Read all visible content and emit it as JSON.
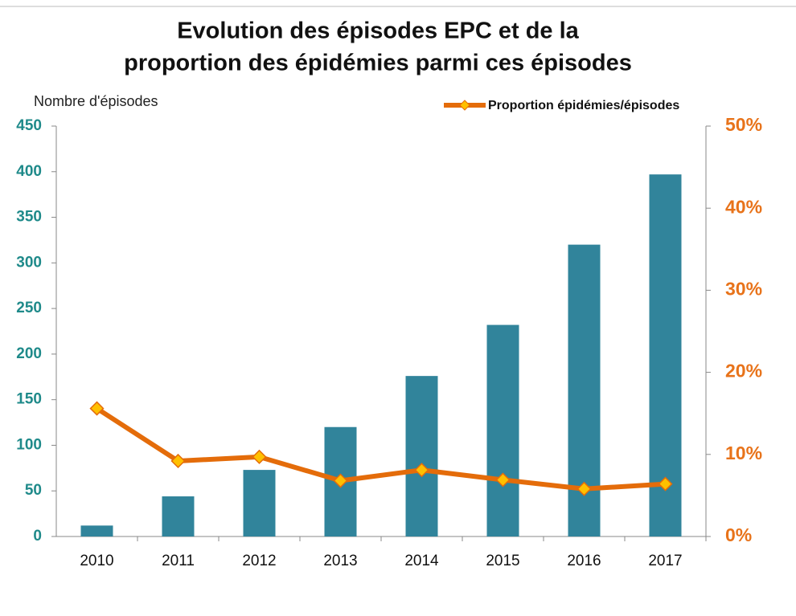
{
  "chart_data": {
    "type": "bar",
    "title": [
      "Evolution des épisodes EPC et de la",
      "proportion des épidémies parmi ces épisodes"
    ],
    "y_label": "Nombre d'épisodes",
    "categories": [
      "2010",
      "2011",
      "2012",
      "2013",
      "2014",
      "2015",
      "2016",
      "2017"
    ],
    "series": [
      {
        "type": "bar",
        "color": "#31849b",
        "values": [
          12,
          44,
          73,
          120,
          176,
          232,
          320,
          397
        ]
      },
      {
        "type": "line",
        "name": "Proportion épidémies/épisodes",
        "color": "#e46c0a",
        "marker_color": "#ffc000",
        "axis": "y2",
        "values": [
          15.6,
          9.2,
          9.7,
          6.8,
          8.1,
          6.9,
          5.8,
          6.4
        ]
      }
    ],
    "ylim": [
      0,
      450
    ],
    "yticks": [
      0,
      50,
      100,
      150,
      200,
      250,
      300,
      350,
      400,
      450
    ],
    "y2lim": [
      0,
      50
    ],
    "y2ticks": [
      {
        "value": 0,
        "label": "0%"
      },
      {
        "value": 10,
        "label": "10%"
      },
      {
        "value": 20,
        "label": "20%"
      },
      {
        "value": 30,
        "label": "30%"
      },
      {
        "value": 40,
        "label": "40%"
      },
      {
        "value": 50,
        "label": "50%"
      }
    ],
    "legend": "top-right"
  }
}
